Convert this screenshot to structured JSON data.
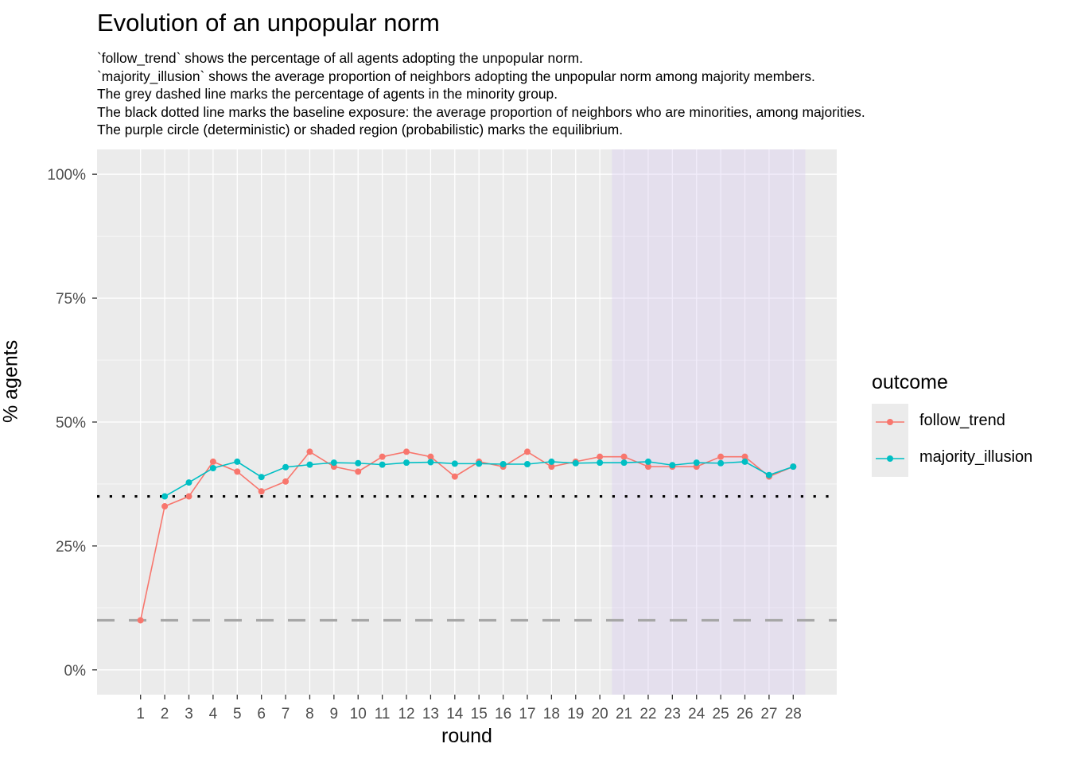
{
  "chart_data": {
    "type": "line",
    "title": "Evolution of an unpopular norm",
    "subtitle": [
      "`follow_trend` shows the percentage of all agents adopting the unpopular norm.",
      "`majority_illusion` shows the average proportion of neighbors adopting the unpopular norm among majority members.",
      "The grey dashed line marks the percentage of agents in the minority group.",
      "The black dotted line marks the baseline exposure: the average proportion of neighbors who are minorities, among majorities.",
      "The purple circle (deterministic) or shaded region (probabilistic) marks the equilibrium."
    ],
    "xlabel": "round",
    "ylabel": "% agents",
    "x": [
      1,
      2,
      3,
      4,
      5,
      6,
      7,
      8,
      9,
      10,
      11,
      12,
      13,
      14,
      15,
      16,
      17,
      18,
      19,
      20,
      21,
      22,
      23,
      24,
      25,
      26,
      27,
      28
    ],
    "x_tick_labels": [
      "1",
      "2",
      "3",
      "4",
      "5",
      "6",
      "7",
      "8",
      "9",
      "10",
      "11",
      "12",
      "13",
      "14",
      "15",
      "16",
      "17",
      "18",
      "19",
      "20",
      "21",
      "22",
      "23",
      "24",
      "25",
      "26",
      "27",
      "28"
    ],
    "xlim": [
      -0.8,
      29.8
    ],
    "ylim": [
      -5,
      105
    ],
    "y_ticks": [
      0,
      25,
      50,
      75,
      100
    ],
    "y_tick_labels": [
      "0%",
      "25%",
      "50%",
      "75%",
      "100%"
    ],
    "grid": true,
    "legend": {
      "title": "outcome",
      "position": "right",
      "entries": [
        "follow_trend",
        "majority_illusion"
      ]
    },
    "series": [
      {
        "name": "follow_trend",
        "color": "#F8766D",
        "values": [
          10,
          33,
          35,
          42,
          40,
          36,
          38,
          44,
          41,
          40,
          43,
          44,
          43,
          39,
          42,
          41,
          44,
          41,
          42,
          43,
          43,
          41,
          41,
          41,
          43,
          43,
          39,
          41
        ]
      },
      {
        "name": "majority_illusion",
        "color": "#00BFC4",
        "values": [
          null,
          35,
          37.8,
          40.7,
          42,
          38.9,
          40.9,
          41.4,
          41.8,
          41.7,
          41.4,
          41.8,
          41.9,
          41.6,
          41.6,
          41.5,
          41.5,
          42,
          41.7,
          41.8,
          41.8,
          42,
          41.3,
          41.8,
          41.7,
          42,
          39.3,
          41
        ]
      }
    ],
    "reference_lines": {
      "minority_pct": {
        "y": 10,
        "style": "dashed",
        "color": "#A6A6A6"
      },
      "baseline_exposure": {
        "y": 35,
        "style": "dotted",
        "color": "#000000"
      }
    },
    "equilibrium_region": {
      "x_start": 20.5,
      "x_end": 28.5,
      "color": "#E6E0F0"
    },
    "colors": {
      "panel_bg": "#EBEBEB",
      "grid": "#FFFFFF",
      "axis_text": "#4D4D4D"
    }
  }
}
